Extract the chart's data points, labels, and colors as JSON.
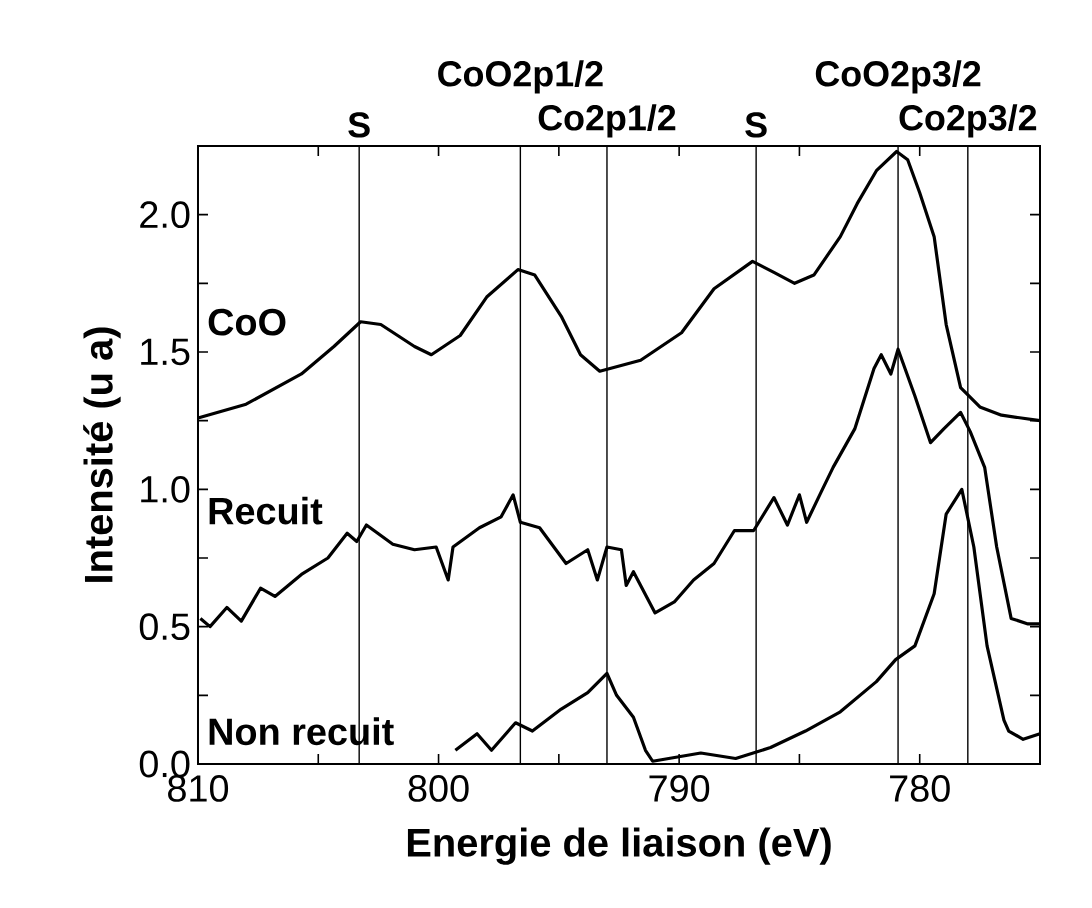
{
  "chart_data": {
    "type": "line",
    "xlabel": "Energie de liaison (eV)",
    "ylabel": "Intensité (u a)",
    "xlim": [
      810,
      775
    ],
    "ylim": [
      0,
      2.25
    ],
    "xticks": [
      810,
      {
        "value": 805,
        "label": null
      },
      800,
      {
        "value": 795,
        "label": null
      },
      790,
      {
        "value": 785,
        "label": null
      },
      780
    ],
    "yticks": [
      {
        "value": 0,
        "label": "0.0"
      },
      {
        "value": 0.25,
        "label": null
      },
      {
        "value": 0.5,
        "label": "0.5"
      },
      {
        "value": 0.75,
        "label": null
      },
      {
        "value": 1,
        "label": "1.0"
      },
      {
        "value": 1.25,
        "label": null
      },
      {
        "value": 1.5,
        "label": "1.5"
      },
      {
        "value": 1.75,
        "label": null
      },
      {
        "value": 2,
        "label": "2.0"
      }
    ],
    "grid": false,
    "legend": "left",
    "marker": "none",
    "line_style": "solid",
    "ref_lines": [
      {
        "axis": "x",
        "value": 803.3,
        "label": "S",
        "color": "#000000"
      },
      {
        "axis": "x",
        "value": 796.6,
        "label": "CoO2p1/2",
        "color": "#000000"
      },
      {
        "axis": "x",
        "value": 793.0,
        "label": "Co2p1/2",
        "color": "#000000"
      },
      {
        "axis": "x",
        "value": 786.8,
        "label": "S",
        "color": "#000000"
      },
      {
        "axis": "x",
        "value": 780.9,
        "label": "CoO2p3/2",
        "color": "#000000"
      },
      {
        "axis": "x",
        "value": 778.0,
        "label": "Co2p3/2",
        "color": "#000000"
      }
    ],
    "series": [
      {
        "name": "CoO",
        "color": "#000000",
        "x": [
          810,
          808,
          805.7,
          804.35,
          803.24,
          802.4,
          801.0,
          800.3,
          799.1,
          798.0,
          796.7,
          796.0,
          794.9,
          794.1,
          793.3,
          791.6,
          789.9,
          788.55,
          786.95,
          786.06,
          785.2,
          784.4,
          783.3,
          782.6,
          781.8,
          780.96,
          780.5,
          780.0,
          779.4,
          778.9,
          778.3,
          777.5,
          776.6,
          775.0
        ],
        "values": [
          1.26,
          1.31,
          1.42,
          1.52,
          1.61,
          1.6,
          1.52,
          1.49,
          1.56,
          1.7,
          1.8,
          1.78,
          1.63,
          1.49,
          1.43,
          1.47,
          1.57,
          1.73,
          1.83,
          1.79,
          1.75,
          1.78,
          1.92,
          2.04,
          2.16,
          2.23,
          2.2,
          2.08,
          1.92,
          1.6,
          1.37,
          1.3,
          1.27,
          1.25
        ]
      },
      {
        "name": "Recuit",
        "color": "#000000",
        "x": [
          809.9,
          809.5,
          808.8,
          808.2,
          807.4,
          806.8,
          805.7,
          804.6,
          803.8,
          803.4,
          803.0,
          801.9,
          801.0,
          800.1,
          799.6,
          799.4,
          798.3,
          797.4,
          796.9,
          796.6,
          795.8,
          794.7,
          793.8,
          793.4,
          793.0,
          792.4,
          792.2,
          791.9,
          791.0,
          790.2,
          789.4,
          788.55,
          787.7,
          786.9,
          786.06,
          785.5,
          785.0,
          784.7,
          784.1,
          783.6,
          782.7,
          781.9,
          781.6,
          781.2,
          780.9,
          780.2,
          779.55,
          779.0,
          778.3,
          777.9,
          777.3,
          776.8,
          776.2,
          775.5,
          775.0
        ],
        "values": [
          0.53,
          0.5,
          0.57,
          0.52,
          0.64,
          0.61,
          0.69,
          0.75,
          0.84,
          0.81,
          0.87,
          0.8,
          0.78,
          0.79,
          0.67,
          0.79,
          0.86,
          0.9,
          0.98,
          0.88,
          0.86,
          0.73,
          0.78,
          0.67,
          0.79,
          0.78,
          0.65,
          0.7,
          0.55,
          0.59,
          0.67,
          0.73,
          0.85,
          0.85,
          0.97,
          0.87,
          0.98,
          0.88,
          0.99,
          1.08,
          1.22,
          1.44,
          1.49,
          1.42,
          1.51,
          1.34,
          1.17,
          1.22,
          1.28,
          1.21,
          1.08,
          0.79,
          0.53,
          0.51,
          0.51
        ]
      },
      {
        "name": "Non recuit",
        "color": "#000000",
        "x": [
          799.3,
          798.4,
          797.8,
          796.8,
          796.1,
          794.9,
          793.8,
          793.0,
          792.6,
          791.9,
          791.4,
          791.1,
          789.1,
          787.65,
          786.2,
          784.75,
          783.3,
          781.8,
          781.0,
          780.2,
          779.4,
          778.9,
          778.25,
          777.75,
          777.2,
          776.5,
          776.3,
          775.7,
          775.0
        ],
        "values": [
          0.05,
          0.11,
          0.05,
          0.15,
          0.12,
          0.2,
          0.26,
          0.33,
          0.25,
          0.17,
          0.05,
          0.01,
          0.04,
          0.02,
          0.06,
          0.12,
          0.19,
          0.3,
          0.38,
          0.43,
          0.62,
          0.91,
          1.0,
          0.79,
          0.43,
          0.16,
          0.12,
          0.09,
          0.11
        ]
      }
    ]
  }
}
